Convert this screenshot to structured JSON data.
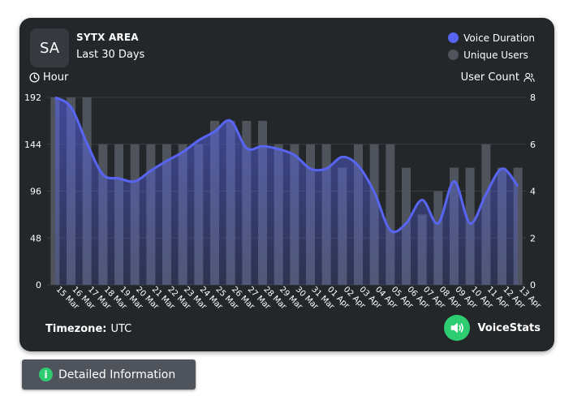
{
  "server": {
    "avatar_text": "SA",
    "name": "SYTX AREA",
    "period": "Last 30 Days"
  },
  "legend": [
    {
      "label": "Voice Duration",
      "color": "#5865f2"
    },
    {
      "label": "Unique Users",
      "color": "#4f545c"
    }
  ],
  "axes": {
    "left_label": "Hour",
    "right_label": "User Count"
  },
  "footer": {
    "timezone_label": "Timezone:",
    "timezone_value": "UTC",
    "brand": "VoiceStats"
  },
  "button": {
    "label": "Detailed Information"
  },
  "colors": {
    "card_bg": "#23272a",
    "line": "#5865f2",
    "bars": "#4f545c",
    "accent_green": "#2ecc71"
  },
  "chart_data": {
    "type": "bar",
    "categories": [
      "15 Mar",
      "16 Mar",
      "17 Mar",
      "18 Mar",
      "19 Mar",
      "20 Mar",
      "21 Mar",
      "22 Mar",
      "23 Mar",
      "24 Mar",
      "25 Mar",
      "26 Mar",
      "27 Mar",
      "28 Mar",
      "29 Mar",
      "30 Mar",
      "31 Mar",
      "01 Apr",
      "02 Apr",
      "03 Apr",
      "04 Apr",
      "05 Apr",
      "06 Apr",
      "07 Apr",
      "08 Apr",
      "09 Apr",
      "10 Apr",
      "11 Apr",
      "12 Apr",
      "13 Apr"
    ],
    "y_left": {
      "ylim": [
        0,
        192
      ],
      "ticks": [
        0,
        48,
        96,
        144,
        192
      ]
    },
    "y_right": {
      "ylim": [
        0,
        8
      ],
      "ticks": [
        0,
        2,
        4,
        6,
        8
      ]
    },
    "series": [
      {
        "name": "Unique Users",
        "kind": "bar",
        "axis": "right",
        "values": [
          8,
          8,
          8,
          6,
          6,
          6,
          6,
          6,
          6,
          6,
          7,
          7,
          7,
          7,
          6,
          6,
          6,
          6,
          5,
          6,
          6,
          6,
          5,
          3,
          4,
          5,
          5,
          6,
          5,
          5
        ]
      },
      {
        "name": "Voice Duration",
        "kind": "area-line",
        "axis": "left",
        "values": [
          192,
          182,
          145,
          113,
          109,
          106,
          117,
          127,
          136,
          148,
          157,
          168,
          140,
          142,
          139,
          133,
          119,
          119,
          131,
          122,
          95,
          56,
          63,
          87,
          63,
          106,
          63,
          93,
          119,
          101
        ]
      }
    ],
    "grid": true
  }
}
